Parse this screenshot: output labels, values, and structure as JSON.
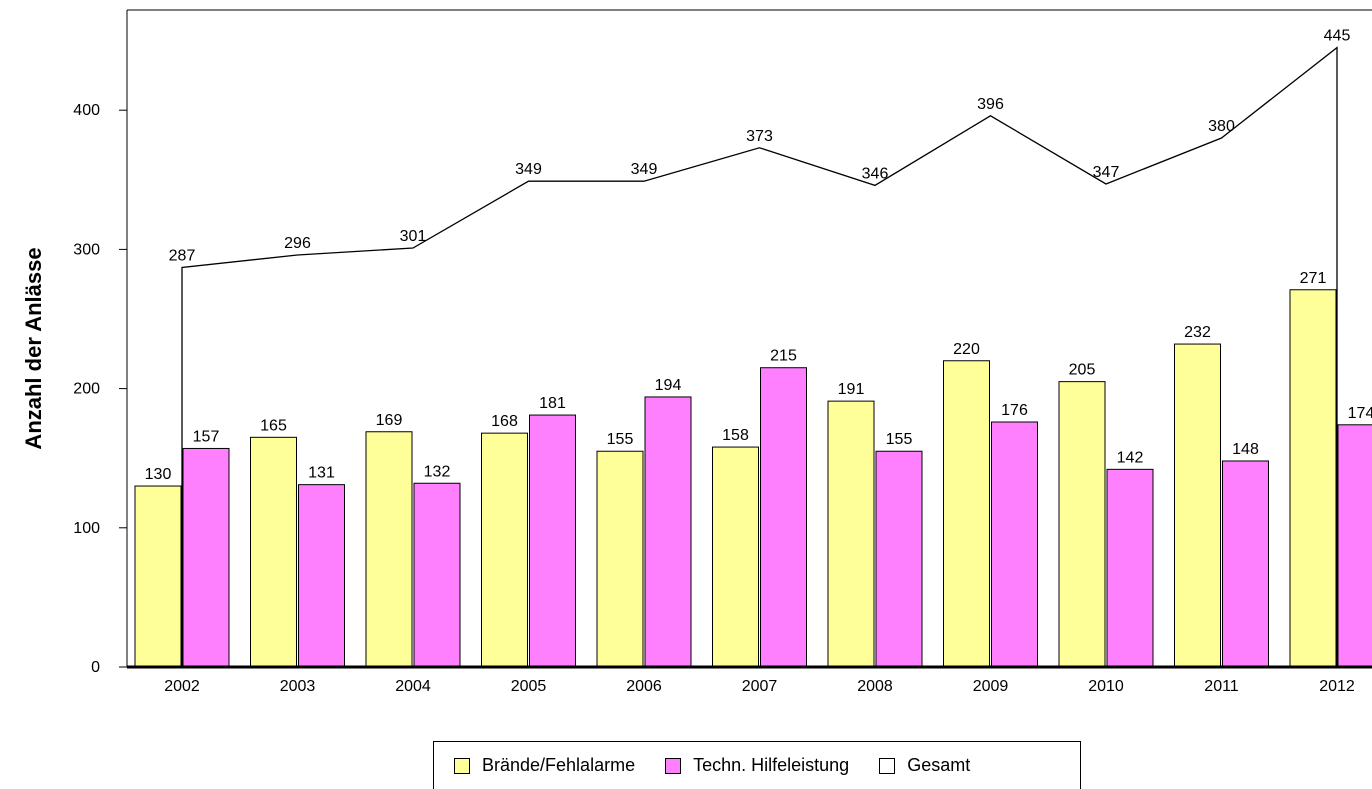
{
  "chart_data": {
    "type": "bar",
    "ylabel": "Anzahl der Anlässe",
    "xlabel": "",
    "categories": [
      "2002",
      "2003",
      "2004",
      "2005",
      "2006",
      "2007",
      "2008",
      "2009",
      "2010",
      "2011",
      "2012"
    ],
    "ylim": [
      0,
      450
    ],
    "yticks": [
      0,
      100,
      200,
      300,
      400
    ],
    "series": [
      {
        "name": "Brände/Fehlalarme",
        "kind": "bar",
        "color": "#ffff99",
        "values": [
          130,
          165,
          169,
          168,
          155,
          158,
          191,
          220,
          205,
          232,
          271
        ]
      },
      {
        "name": "Techn. Hilfeleistung",
        "kind": "bar",
        "color": "#ff80ff",
        "values": [
          157,
          131,
          132,
          181,
          194,
          215,
          155,
          176,
          142,
          148,
          174
        ]
      },
      {
        "name": "Gesamt",
        "kind": "line",
        "color": "#ffffff",
        "values": [
          287,
          296,
          301,
          349,
          349,
          373,
          346,
          396,
          347,
          380,
          445
        ]
      }
    ],
    "legend_position": "bottom",
    "grid": false
  }
}
